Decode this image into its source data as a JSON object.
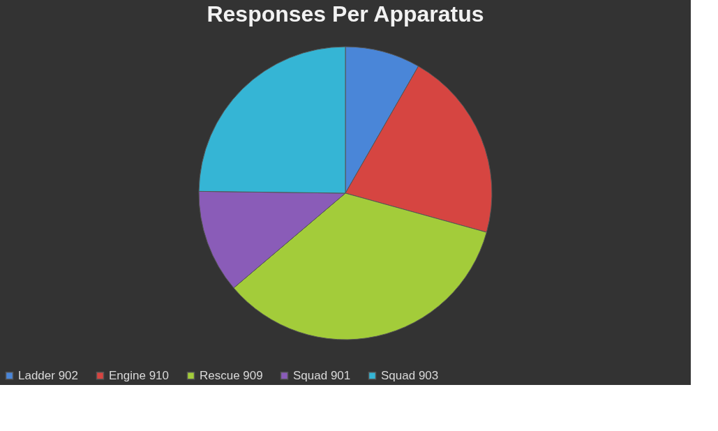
{
  "chart_data": {
    "type": "pie",
    "title": "Responses Per Apparatus",
    "categories": [
      "Ladder 902",
      "Engine 910",
      "Rescue 909",
      "Squad 901",
      "Squad 903"
    ],
    "values": [
      8.3,
      21,
      34.5,
      11.4,
      24.8
    ],
    "colors": [
      "#4a86d8",
      "#d64541",
      "#a3cc3a",
      "#8a5cb8",
      "#35b5d5"
    ],
    "legend": "bottom"
  }
}
